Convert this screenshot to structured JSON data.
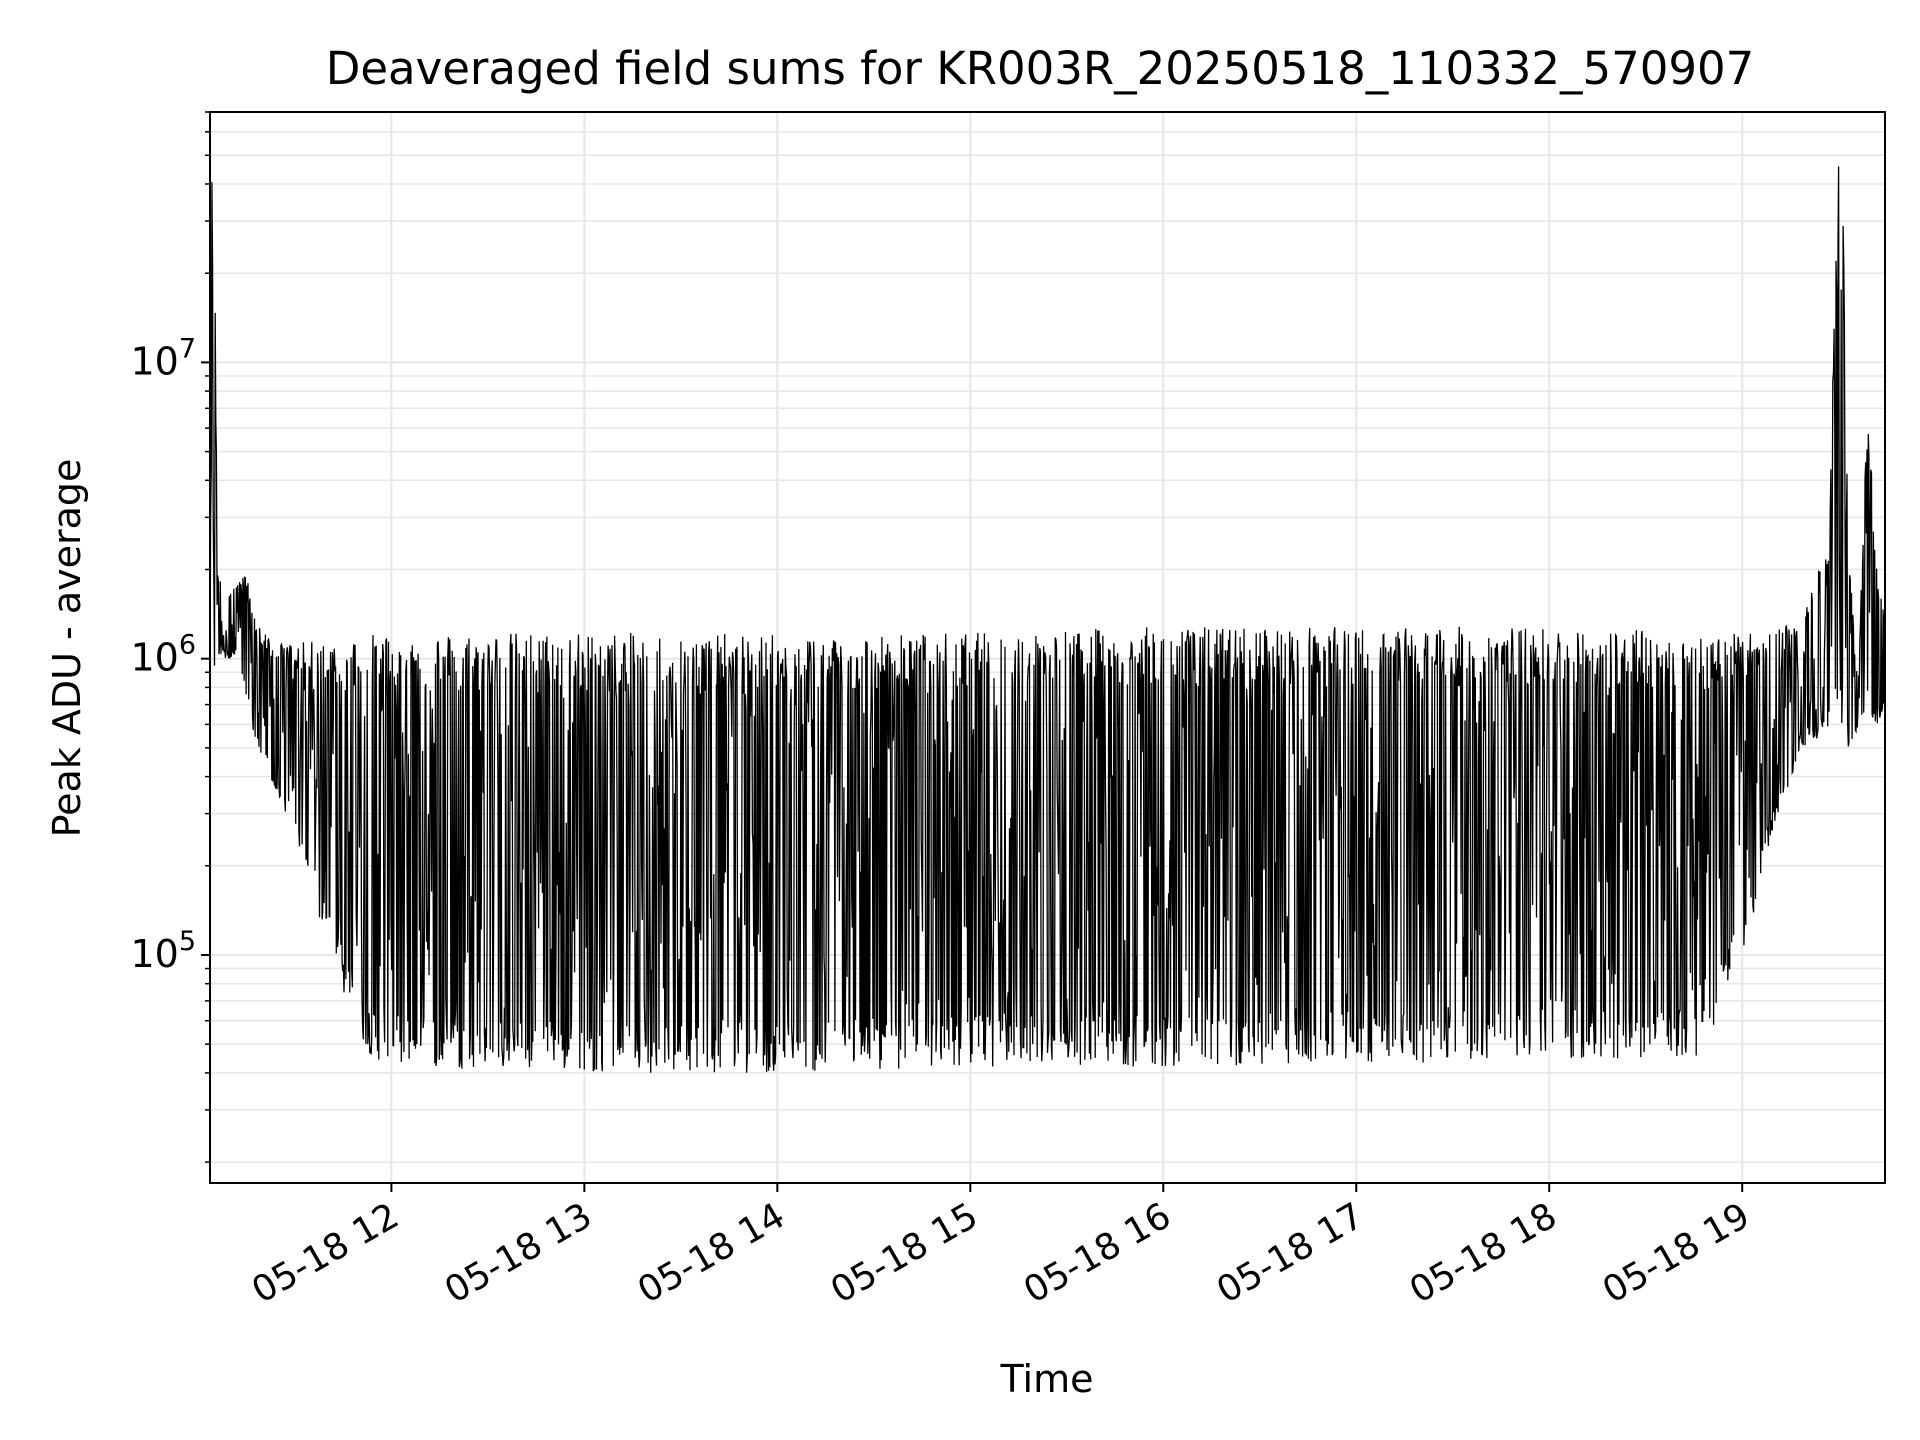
{
  "chart_data": {
    "type": "line",
    "title": "Deaveraged field sums for KR003R_20250518_110332_570907",
    "xlabel": "Time",
    "ylabel": "Peak ADU - average",
    "yscale": "log",
    "ylim": [
      17000,
      70000000
    ],
    "xlim_hours": [
      11.06,
      19.74
    ],
    "grid": true,
    "line_color": "#000000",
    "grid_color": "#e6e6e6",
    "x_ticks": [
      {
        "hour": 12,
        "label": "05-18 12"
      },
      {
        "hour": 13,
        "label": "05-18 13"
      },
      {
        "hour": 14,
        "label": "05-18 14"
      },
      {
        "hour": 15,
        "label": "05-18 15"
      },
      {
        "hour": 16,
        "label": "05-18 16"
      },
      {
        "hour": 17,
        "label": "05-18 17"
      },
      {
        "hour": 18,
        "label": "05-18 18"
      },
      {
        "hour": 19,
        "label": "05-18 19"
      }
    ],
    "y_ticks": [
      {
        "value": 100000,
        "base": "10",
        "exp": "5"
      },
      {
        "value": 1000000,
        "base": "10",
        "exp": "6"
      },
      {
        "value": 10000000,
        "base": "10",
        "exp": "7"
      }
    ],
    "series": [
      {
        "name": "Peak ADU - average",
        "upper_envelope": {
          "x_hours": [
            11.06,
            11.07,
            11.08,
            11.1,
            11.15,
            11.25,
            11.3,
            11.4,
            11.6,
            12.0,
            13.0,
            14.0,
            15.0,
            16.0,
            17.0,
            18.0,
            19.0,
            19.3,
            19.45,
            19.5,
            19.52,
            19.55,
            19.6,
            19.65,
            19.7,
            19.74
          ],
          "values": [
            800000,
            40000000,
            42000000,
            2000000,
            1700000,
            1900000,
            1300000,
            1100000,
            1100000,
            1150000,
            1150000,
            1130000,
            1150000,
            1200000,
            1200000,
            1200000,
            1150000,
            1300000,
            2600000,
            50000000,
            45000000,
            2500000,
            800000,
            7500000,
            1800000,
            1500000
          ]
        },
        "lower_envelope": {
          "x_hours": [
            11.06,
            11.1,
            11.2,
            11.3,
            11.4,
            11.5,
            11.6,
            11.7,
            11.8,
            11.9,
            12.0,
            13.0,
            14.0,
            15.0,
            16.0,
            17.0,
            18.0,
            18.8,
            18.9,
            19.0,
            19.05,
            19.1,
            19.2,
            19.3,
            19.45,
            19.55,
            19.6,
            19.7,
            19.74
          ],
          "values": [
            700000,
            1000000,
            1000000,
            500000,
            350000,
            260000,
            150000,
            95000,
            60000,
            45000,
            42000,
            40000,
            40000,
            42000,
            42000,
            43000,
            44000,
            45000,
            70000,
            100000,
            130000,
            190000,
            300000,
            500000,
            550000,
            500000,
            550000,
            600000,
            650000
          ]
        }
      }
    ]
  }
}
